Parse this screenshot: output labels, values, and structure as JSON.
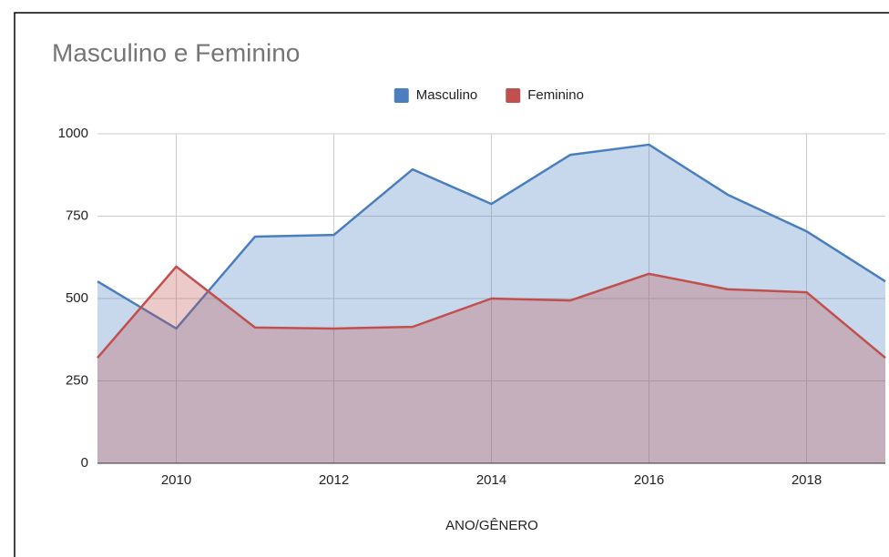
{
  "chart_data": {
    "type": "area",
    "title": "Masculino e Feminino",
    "x_label": "ANO/GÊNERO",
    "x": [
      2009,
      2010,
      2011,
      2012,
      2013,
      2014,
      2015,
      2016,
      2017,
      2018,
      2019
    ],
    "series": [
      {
        "name": "Masculino",
        "color": "#4a7ebf",
        "values": [
          552,
          409,
          688,
          693,
          892,
          787,
          936,
          967,
          815,
          704,
          552
        ]
      },
      {
        "name": "Feminino",
        "color": "#c0504d",
        "values": [
          320,
          597,
          412,
          409,
          414,
          500,
          494,
          575,
          528,
          519,
          320
        ]
      }
    ],
    "xlim": [
      2009,
      2019
    ],
    "xticks": [
      2010,
      2012,
      2014,
      2016,
      2018
    ],
    "ylim": [
      0,
      1000
    ],
    "yticks": [
      0,
      250,
      500,
      750,
      1000
    ],
    "grid": true,
    "legend": "top"
  }
}
